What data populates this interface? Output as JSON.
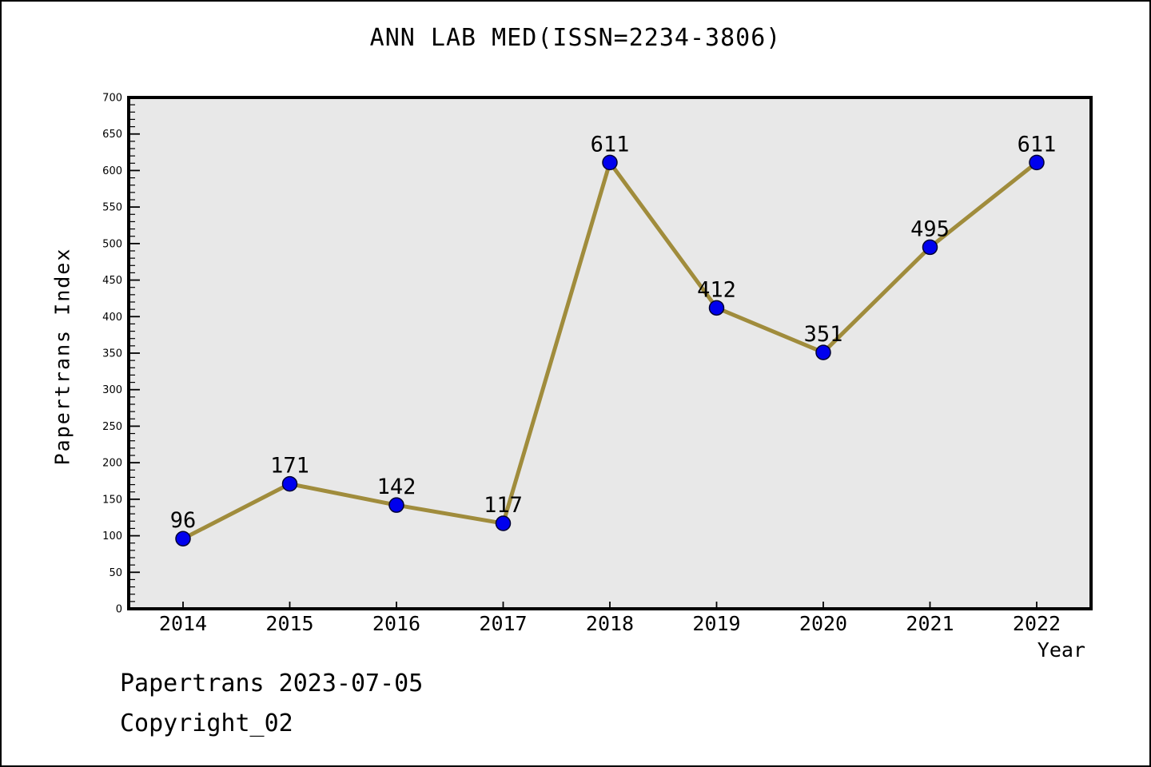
{
  "title": "ANN LAB MED(ISSN=2234-3806)",
  "footer": {
    "line1": "Papertrans 2023-07-05",
    "line2": "Copyright_02"
  },
  "chart_data": {
    "type": "line",
    "x": [
      "2014",
      "2015",
      "2016",
      "2017",
      "2018",
      "2019",
      "2020",
      "2021",
      "2022"
    ],
    "values": [
      96,
      171,
      142,
      117,
      611,
      412,
      351,
      495,
      611
    ],
    "point_labels": [
      "96",
      "171",
      "142",
      "117",
      "611",
      "412",
      "351",
      "495",
      "611"
    ],
    "title": "ANN LAB MED(ISSN=2234-3806)",
    "xlabel": "Year",
    "ylabel": "Papertrans Index",
    "ylim": [
      0,
      700
    ],
    "ytick_major": 50,
    "ytick_minor": 10,
    "grid": false,
    "legend": "none",
    "colors": {
      "line": "#a08c3c",
      "marker_fill": "#0000ee",
      "marker_edge": "#000033",
      "plot_background": "#e8e8e8",
      "axis": "#000000",
      "text": "#000000"
    }
  }
}
